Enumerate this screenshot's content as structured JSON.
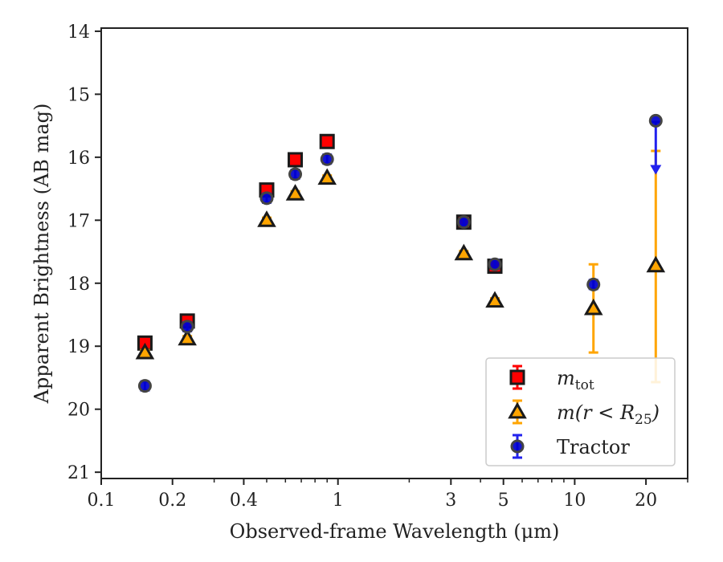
{
  "chart_data": {
    "type": "scatter",
    "xlabel": "Observed-frame Wavelength (μm)",
    "ylabel": "Apparent Brightness (AB mag)",
    "x_scale": "log",
    "xlim": [
      0.1,
      30
    ],
    "ylim": [
      21.1,
      13.95
    ],
    "y_inverted": true,
    "x_ticks": [
      {
        "value": 0.1,
        "label": "0.1"
      },
      {
        "value": 0.2,
        "label": "0.2"
      },
      {
        "value": 0.4,
        "label": "0.4"
      },
      {
        "value": 1,
        "label": "1"
      },
      {
        "value": 3,
        "label": "3"
      },
      {
        "value": 5,
        "label": "5"
      },
      {
        "value": 10,
        "label": "10"
      },
      {
        "value": 20,
        "label": "20"
      }
    ],
    "y_ticks": [
      {
        "value": 14,
        "label": "14"
      },
      {
        "value": 15,
        "label": "15"
      },
      {
        "value": 16,
        "label": "16"
      },
      {
        "value": 17,
        "label": "17"
      },
      {
        "value": 18,
        "label": "18"
      },
      {
        "value": 19,
        "label": "19"
      },
      {
        "value": 20,
        "label": "20"
      },
      {
        "value": 21,
        "label": "21"
      }
    ],
    "legend_position": "lower-right",
    "grid": false,
    "series": [
      {
        "key": "mtot",
        "legend_main": "m",
        "legend_sub": "tot",
        "marker": "square",
        "color": "#ff0000",
        "edge_color": "#1a1a1a",
        "error_color": "#ff0000",
        "points": [
          {
            "x": 0.153,
            "y": 18.95,
            "err": 0.05
          },
          {
            "x": 0.231,
            "y": 18.6,
            "err": 0.05
          },
          {
            "x": 0.5,
            "y": 16.52,
            "err": 0.05
          },
          {
            "x": 0.66,
            "y": 16.04,
            "err": 0.05
          },
          {
            "x": 0.9,
            "y": 15.75,
            "err": 0.05
          },
          {
            "x": 3.4,
            "y": 17.03,
            "err": 0.05
          },
          {
            "x": 4.6,
            "y": 17.73,
            "err": 0.05
          }
        ]
      },
      {
        "key": "m_r25",
        "legend_main": "m(r < R",
        "legend_sub": "25",
        "legend_tail": ")",
        "marker": "triangle",
        "color": "#ffa500",
        "edge_color": "#1a1a1a",
        "error_color": "#ffa500",
        "points": [
          {
            "x": 0.153,
            "y": 19.1,
            "err": 0.04
          },
          {
            "x": 0.231,
            "y": 18.88,
            "err": 0.04
          },
          {
            "x": 0.5,
            "y": 17.0,
            "err": 0.04
          },
          {
            "x": 0.66,
            "y": 16.58,
            "err": 0.04
          },
          {
            "x": 0.9,
            "y": 16.33,
            "err": 0.04
          },
          {
            "x": 3.4,
            "y": 17.53,
            "err": 0.04
          },
          {
            "x": 4.6,
            "y": 18.28,
            "err": 0.04
          },
          {
            "x": 12.0,
            "y": 18.4,
            "err_lo": 0.7,
            "err_hi": 0.7
          },
          {
            "x": 22.0,
            "y": 17.72,
            "err_lo": 1.82,
            "err_hi": 1.85
          }
        ]
      },
      {
        "key": "tractor",
        "legend_main": "Tractor",
        "marker": "circle",
        "color": "#0000cd",
        "edge_color": "#444444",
        "error_color": "#2222ee",
        "points": [
          {
            "x": 0.153,
            "y": 19.63,
            "err": 0.07
          },
          {
            "x": 0.231,
            "y": 18.69,
            "err": 0.07
          },
          {
            "x": 0.5,
            "y": 16.65,
            "err": 0.07
          },
          {
            "x": 0.66,
            "y": 16.27,
            "err": 0.07
          },
          {
            "x": 0.9,
            "y": 16.03,
            "err": 0.07
          },
          {
            "x": 3.4,
            "y": 17.03,
            "err": 0.05
          },
          {
            "x": 4.6,
            "y": 17.7,
            "err": 0.07
          },
          {
            "x": 12.0,
            "y": 18.02,
            "err": 0.07
          },
          {
            "x": 22.0,
            "y": 15.42,
            "upper_limit_to": 16.25
          }
        ]
      }
    ]
  }
}
